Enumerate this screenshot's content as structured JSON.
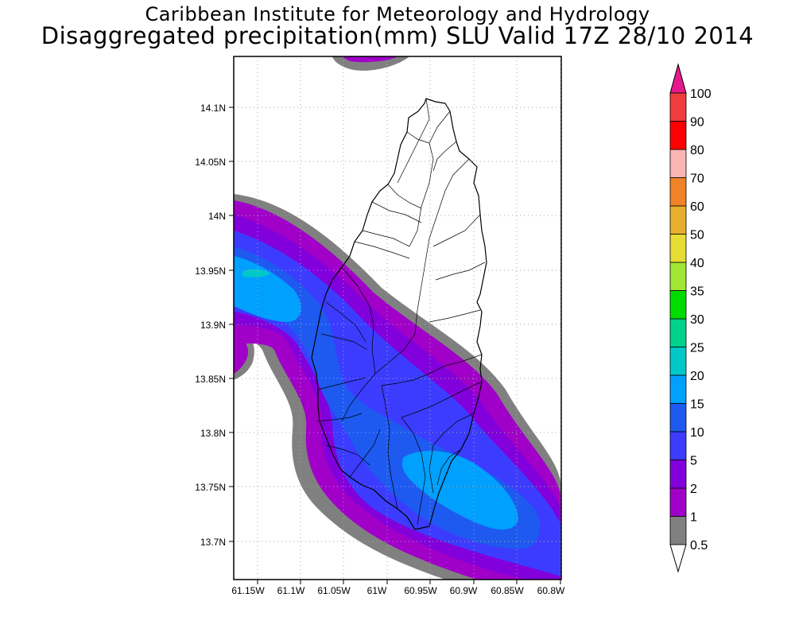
{
  "title": {
    "line1": "Caribbean Institute for Meteorology and Hydrology",
    "line2": "Disaggregated precipitation(mm) SLU Valid 17Z 28/10 2014"
  },
  "map": {
    "region": "Saint Lucia",
    "lon_range": [
      -61.17,
      -60.79
    ],
    "lat_range": [
      13.66,
      14.14
    ],
    "lon_ticks": [
      {
        "value": -61.15,
        "label": "61.15W"
      },
      {
        "value": -61.1,
        "label": "61.1W"
      },
      {
        "value": -61.05,
        "label": "61.05W"
      },
      {
        "value": -61.0,
        "label": "61W"
      },
      {
        "value": -60.95,
        "label": "60.95W"
      },
      {
        "value": -60.9,
        "label": "60.9W"
      },
      {
        "value": -60.85,
        "label": "60.85W"
      },
      {
        "value": -60.8,
        "label": "60.8W"
      }
    ],
    "lat_ticks": [
      {
        "value": 14.1,
        "label": "14.1N"
      },
      {
        "value": 14.05,
        "label": "14.05N"
      },
      {
        "value": 14.0,
        "label": "14N"
      },
      {
        "value": 13.95,
        "label": "13.95N"
      },
      {
        "value": 13.9,
        "label": "13.9N"
      },
      {
        "value": 13.85,
        "label": "13.85N"
      },
      {
        "value": 13.8,
        "label": "13.8N"
      },
      {
        "value": 13.75,
        "label": "13.75N"
      },
      {
        "value": 13.7,
        "label": "13.7N"
      }
    ],
    "grid": true,
    "grid_style": "dotted"
  },
  "colorbar": {
    "levels": [
      "0.5",
      "1",
      "2",
      "5",
      "10",
      "15",
      "20",
      "25",
      "30",
      "35",
      "40",
      "50",
      "60",
      "70",
      "80",
      "90",
      "100"
    ],
    "colors": [
      "#808080",
      "#a000c8",
      "#8200dc",
      "#3c3cff",
      "#1e5af0",
      "#00a0ff",
      "#00c8c8",
      "#00d28c",
      "#00dc00",
      "#a0e632",
      "#e6dc32",
      "#e6af2d",
      "#f08228",
      "#fab4b4",
      "#ff0000",
      "#f03c3c",
      "#e6198c"
    ]
  }
}
